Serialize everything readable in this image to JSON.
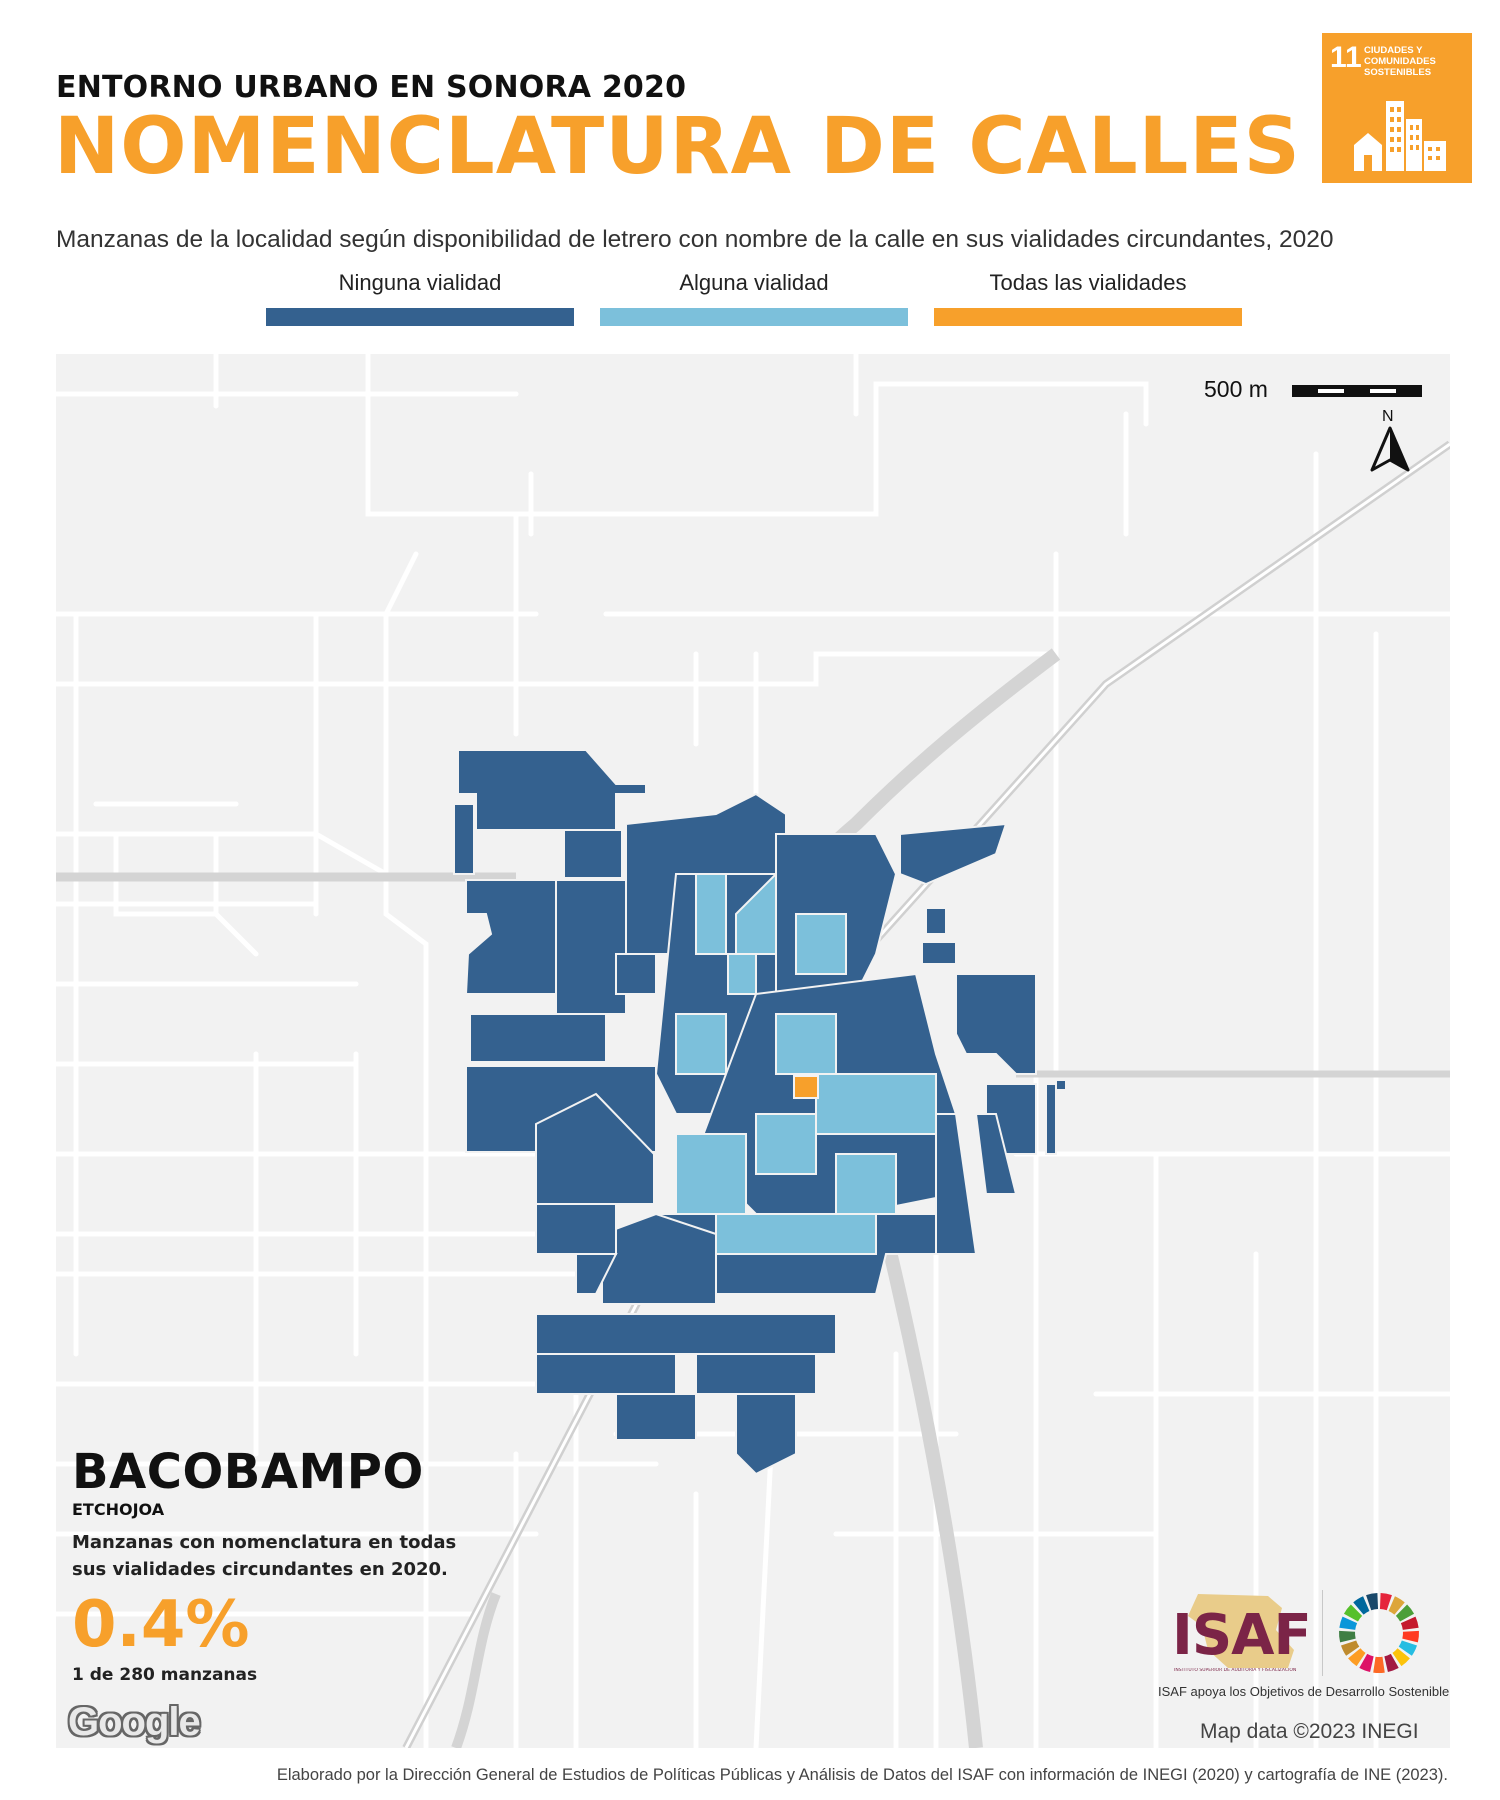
{
  "header": {
    "kicker": "ENTORNO URBANO EN SONORA 2020",
    "title": "NOMENCLATURA DE CALLES",
    "subtitle": "Manzanas de la localidad según disponibilidad de letrero con nombre de la calle en sus vialidades circundantes, 2020"
  },
  "sdg_badge": {
    "number": "11",
    "text": "CIUDADES Y\nCOMUNIDADES\nSOSTENIBLES",
    "icon": "city-buildings-icon",
    "color": "#f7a02b"
  },
  "legend": [
    {
      "label": "Ninguna vialidad",
      "color": "#34618f"
    },
    {
      "label": "Alguna vialidad",
      "color": "#7cc0db"
    },
    {
      "label": "Todas las vialidades",
      "color": "#f7a02b"
    }
  ],
  "map": {
    "scale_label": "500 m",
    "north_label": "N",
    "attribution": "Map data ©2023 INEGI",
    "provider_logo": "Google",
    "background_color": "#f2f2f2",
    "road_color": "#ffffff",
    "highway_color": "#d4d4d4"
  },
  "locality": {
    "name": "BACOBAMPO",
    "municipality": "ETCHOJOA",
    "description": "Manzanas con nomenclatura en todas sus vialidades circundantes en 2020.",
    "percent": "0.4%",
    "count_text": "1 de 280 manzanas",
    "blocks_with_signs_all": 1,
    "blocks_total": 280
  },
  "branding": {
    "isaf_word": "ISAF",
    "isaf_small": "INSTITUTO SUPERIOR DE AUDITORÍA Y FISCALIZACIÓN",
    "isaf_caption": "ISAF apoya los Objetivos de Desarrollo Sostenible",
    "isaf_color": "#7b2447"
  },
  "footer": "Elaborado por la Dirección General de Estudios de Políticas Públicas y Análisis de Datos del ISAF con información de INEGI (2020) y cartografía de INE (2023)."
}
